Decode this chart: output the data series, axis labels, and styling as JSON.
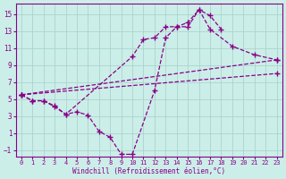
{
  "xlabel": "Windchill (Refroidissement éolien,°C)",
  "background_color": "#cceee8",
  "grid_color": "#aad4ce",
  "line_color": "#880088",
  "xlim": [
    -0.5,
    23.5
  ],
  "ylim": [
    -1.8,
    16.2
  ],
  "xticks": [
    0,
    1,
    2,
    3,
    4,
    5,
    6,
    7,
    8,
    9,
    10,
    11,
    12,
    13,
    14,
    15,
    16,
    17,
    18,
    19,
    20,
    21,
    22,
    23
  ],
  "yticks": [
    -1,
    1,
    3,
    5,
    7,
    9,
    11,
    13,
    15
  ],
  "series": [
    {
      "x": [
        0,
        1,
        2,
        3,
        4,
        5,
        6,
        7,
        8,
        9,
        10,
        12,
        13,
        14,
        15,
        16,
        17,
        18
      ],
      "y": [
        5.5,
        4.8,
        4.8,
        4.1,
        3.2,
        3.5,
        3.1,
        1.2,
        0.5,
        -1.5,
        -1.5,
        6.0,
        12.2,
        13.5,
        13.5,
        15.5,
        14.8,
        13.2
      ]
    },
    {
      "x": [
        0,
        1,
        2,
        3,
        4,
        10,
        11,
        12,
        13,
        14,
        15,
        16,
        17,
        19,
        21,
        23
      ],
      "y": [
        5.5,
        4.8,
        4.8,
        4.2,
        3.2,
        10.0,
        12.0,
        12.2,
        13.5,
        13.5,
        14.0,
        15.5,
        13.2,
        11.2,
        10.2,
        9.6
      ]
    },
    {
      "x": [
        0,
        23
      ],
      "y": [
        5.5,
        8.0
      ]
    },
    {
      "x": [
        0,
        23
      ],
      "y": [
        5.5,
        9.6
      ]
    }
  ]
}
